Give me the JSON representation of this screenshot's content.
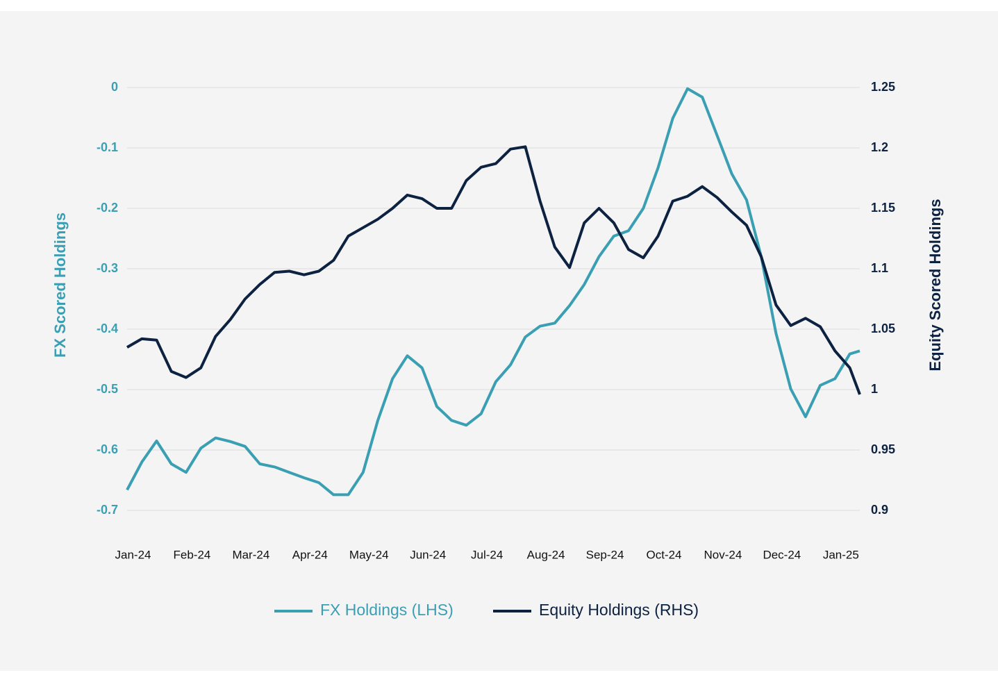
{
  "chart_data": {
    "type": "line",
    "x": [
      -0.1,
      0.15,
      0.4,
      0.65,
      0.9,
      1.15,
      1.4,
      1.65,
      1.9,
      2.15,
      2.4,
      2.65,
      2.9,
      3.15,
      3.4,
      3.65,
      3.9,
      4.15,
      4.4,
      4.65,
      4.9,
      5.15,
      5.4,
      5.65,
      5.9,
      6.15,
      6.4,
      6.65,
      6.9,
      7.15,
      7.4,
      7.65,
      7.9,
      8.15,
      8.4,
      8.65,
      8.9,
      9.15,
      9.4,
      9.65,
      9.9,
      10.15,
      10.4,
      10.65,
      10.9,
      11.15,
      11.4,
      11.65,
      11.9,
      12.15,
      12.32
    ],
    "xlim": [
      -0.1,
      12.32
    ],
    "xticks": [
      {
        "value": 0,
        "label": "Jan-24"
      },
      {
        "value": 1,
        "label": "Feb-24"
      },
      {
        "value": 2,
        "label": "Mar-24"
      },
      {
        "value": 3,
        "label": "Apr-24"
      },
      {
        "value": 4,
        "label": "May-24"
      },
      {
        "value": 5,
        "label": "Jun-24"
      },
      {
        "value": 6,
        "label": "Jul-24"
      },
      {
        "value": 7,
        "label": "Aug-24"
      },
      {
        "value": 8,
        "label": "Sep-24"
      },
      {
        "value": 9,
        "label": "Oct-24"
      },
      {
        "value": 10,
        "label": "Nov-24"
      },
      {
        "value": 11,
        "label": "Dec-24"
      },
      {
        "value": 12,
        "label": "Jan-25"
      }
    ],
    "ylabel": "FX Scored Holdings",
    "y2label": "Equity Scored Holdings",
    "ylim": [
      -0.7,
      0
    ],
    "yticks": [
      0,
      -0.1,
      -0.2,
      -0.3,
      -0.4,
      -0.5,
      -0.6,
      -0.7
    ],
    "y2lim": [
      0.9,
      1.25
    ],
    "y2ticks": [
      1.25,
      1.2,
      1.15,
      1.1,
      1.05,
      1,
      0.95,
      0.9
    ],
    "grid": true,
    "legend": "bottom",
    "series": [
      {
        "name": "FX Holdings (LHS)",
        "color": "#3a9fb3",
        "values": [
          -0.666,
          -0.62,
          -0.585,
          -0.623,
          -0.637,
          -0.597,
          -0.58,
          -0.586,
          -0.594,
          -0.623,
          -0.628,
          -0.637,
          -0.646,
          -0.654,
          -0.674,
          -0.674,
          -0.637,
          -0.551,
          -0.482,
          -0.444,
          -0.464,
          -0.528,
          -0.551,
          -0.559,
          -0.54,
          -0.487,
          -0.459,
          -0.413,
          -0.395,
          -0.39,
          -0.361,
          -0.326,
          -0.28,
          -0.246,
          -0.237,
          -0.2,
          -0.133,
          -0.051,
          -0.002,
          -0.016,
          -0.079,
          -0.143,
          -0.186,
          -0.28,
          -0.407,
          -0.499,
          -0.545,
          -0.493,
          -0.482,
          -0.441,
          -0.436
        ]
      },
      {
        "name": "Equity Holdings (RHS)",
        "color": "#0d2240",
        "axis": "y2",
        "values": [
          1.035,
          1.042,
          1.041,
          1.015,
          1.01,
          1.018,
          1.044,
          1.058,
          1.075,
          1.087,
          1.097,
          1.098,
          1.095,
          1.098,
          1.107,
          1.127,
          1.134,
          1.141,
          1.15,
          1.161,
          1.158,
          1.15,
          1.15,
          1.173,
          1.184,
          1.187,
          1.199,
          1.201,
          1.156,
          1.118,
          1.101,
          1.138,
          1.15,
          1.138,
          1.116,
          1.109,
          1.127,
          1.156,
          1.16,
          1.168,
          1.159,
          1.147,
          1.136,
          1.11,
          1.07,
          1.053,
          1.059,
          1.052,
          1.032,
          1.018,
          0.996
        ]
      }
    ]
  }
}
